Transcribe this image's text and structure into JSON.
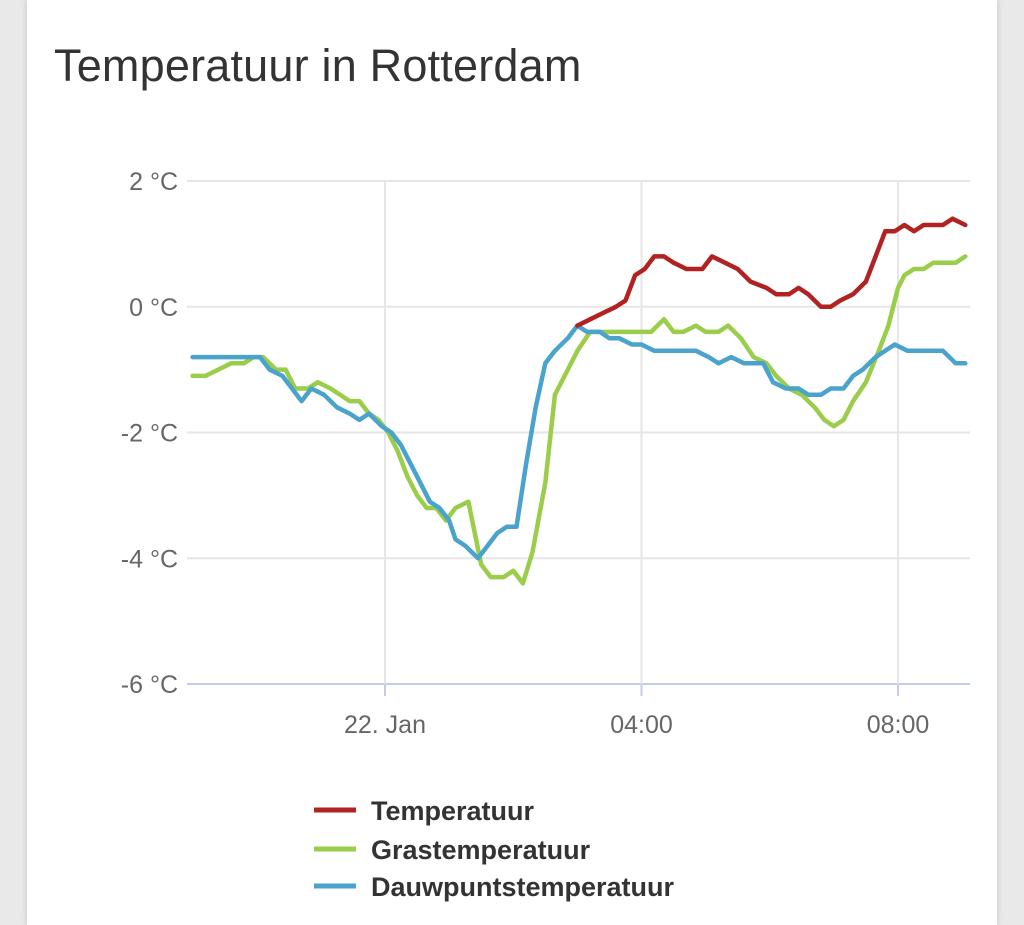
{
  "title": "Temperatuur in Rotterdam",
  "chart_data": {
    "type": "line",
    "title": "Temperatuur in Rotterdam",
    "xlabel": "",
    "ylabel": "",
    "y_ticks": [
      2,
      0,
      -2,
      -4,
      -6
    ],
    "y_unit": "°C",
    "y_tick_labels": [
      "2 °C",
      "0 °C",
      "-2 °C",
      "-4 °C",
      "-6 °C"
    ],
    "ylim": [
      -6,
      2
    ],
    "x_unit": "hours since 00:00 on 22 Jan",
    "xlim": [
      -3,
      9.1
    ],
    "x_ticks": [
      0,
      4,
      8
    ],
    "x_tick_labels": [
      "22. Jan",
      "04:00",
      "08:00"
    ],
    "grid": true,
    "legend_position": "bottom",
    "series": [
      {
        "name": "Temperatuur",
        "color": "#b22222",
        "points": [
          [
            3.0,
            -0.3
          ],
          [
            3.2,
            -0.2
          ],
          [
            3.4,
            -0.1
          ],
          [
            3.6,
            0.0
          ],
          [
            3.75,
            0.1
          ],
          [
            3.9,
            0.5
          ],
          [
            4.05,
            0.6
          ],
          [
            4.2,
            0.8
          ],
          [
            4.35,
            0.8
          ],
          [
            4.5,
            0.7
          ],
          [
            4.7,
            0.6
          ],
          [
            4.95,
            0.6
          ],
          [
            5.1,
            0.8
          ],
          [
            5.3,
            0.7
          ],
          [
            5.5,
            0.6
          ],
          [
            5.7,
            0.4
          ],
          [
            5.95,
            0.3
          ],
          [
            6.1,
            0.2
          ],
          [
            6.3,
            0.2
          ],
          [
            6.45,
            0.3
          ],
          [
            6.6,
            0.2
          ],
          [
            6.8,
            0.0
          ],
          [
            6.95,
            0.0
          ],
          [
            7.1,
            0.1
          ],
          [
            7.3,
            0.2
          ],
          [
            7.5,
            0.4
          ],
          [
            7.65,
            0.8
          ],
          [
            7.8,
            1.2
          ],
          [
            7.95,
            1.2
          ],
          [
            8.1,
            1.3
          ],
          [
            8.25,
            1.2
          ],
          [
            8.4,
            1.3
          ],
          [
            8.55,
            1.3
          ],
          [
            8.7,
            1.3
          ],
          [
            8.85,
            1.4
          ],
          [
            9.05,
            1.3
          ]
        ]
      },
      {
        "name": "Grastemperatuur",
        "color": "#9acd4a",
        "points": [
          [
            -3.0,
            -1.1
          ],
          [
            -2.8,
            -1.1
          ],
          [
            -2.6,
            -1.0
          ],
          [
            -2.4,
            -0.9
          ],
          [
            -2.2,
            -0.9
          ],
          [
            -2.05,
            -0.8
          ],
          [
            -1.9,
            -0.8
          ],
          [
            -1.7,
            -1.0
          ],
          [
            -1.55,
            -1.0
          ],
          [
            -1.4,
            -1.3
          ],
          [
            -1.2,
            -1.3
          ],
          [
            -1.05,
            -1.2
          ],
          [
            -0.85,
            -1.3
          ],
          [
            -0.7,
            -1.4
          ],
          [
            -0.55,
            -1.5
          ],
          [
            -0.4,
            -1.5
          ],
          [
            -0.25,
            -1.7
          ],
          [
            -0.1,
            -1.8
          ],
          [
            0.05,
            -2.0
          ],
          [
            0.2,
            -2.3
          ],
          [
            0.35,
            -2.7
          ],
          [
            0.5,
            -3.0
          ],
          [
            0.65,
            -3.2
          ],
          [
            0.8,
            -3.2
          ],
          [
            0.95,
            -3.4
          ],
          [
            1.1,
            -3.2
          ],
          [
            1.3,
            -3.1
          ],
          [
            1.5,
            -4.1
          ],
          [
            1.65,
            -4.3
          ],
          [
            1.85,
            -4.3
          ],
          [
            2.0,
            -4.2
          ],
          [
            2.15,
            -4.4
          ],
          [
            2.3,
            -3.9
          ],
          [
            2.5,
            -2.8
          ],
          [
            2.65,
            -1.4
          ],
          [
            2.85,
            -1.0
          ],
          [
            3.0,
            -0.7
          ],
          [
            3.2,
            -0.4
          ],
          [
            3.4,
            -0.4
          ],
          [
            3.65,
            -0.4
          ],
          [
            3.9,
            -0.4
          ],
          [
            4.15,
            -0.4
          ],
          [
            4.35,
            -0.2
          ],
          [
            4.5,
            -0.4
          ],
          [
            4.65,
            -0.4
          ],
          [
            4.85,
            -0.3
          ],
          [
            5.0,
            -0.4
          ],
          [
            5.2,
            -0.4
          ],
          [
            5.35,
            -0.3
          ],
          [
            5.55,
            -0.5
          ],
          [
            5.75,
            -0.8
          ],
          [
            5.95,
            -0.9
          ],
          [
            6.1,
            -1.1
          ],
          [
            6.3,
            -1.3
          ],
          [
            6.5,
            -1.4
          ],
          [
            6.7,
            -1.6
          ],
          [
            6.85,
            -1.8
          ],
          [
            7.0,
            -1.9
          ],
          [
            7.15,
            -1.8
          ],
          [
            7.3,
            -1.5
          ],
          [
            7.5,
            -1.2
          ],
          [
            7.7,
            -0.7
          ],
          [
            7.85,
            -0.3
          ],
          [
            8.0,
            0.3
          ],
          [
            8.1,
            0.5
          ],
          [
            8.25,
            0.6
          ],
          [
            8.4,
            0.6
          ],
          [
            8.55,
            0.7
          ],
          [
            8.75,
            0.7
          ],
          [
            8.9,
            0.7
          ],
          [
            9.05,
            0.8
          ]
        ]
      },
      {
        "name": "Dauwpuntstemperatuur",
        "color": "#4aa3cc",
        "points": [
          [
            -3.0,
            -0.8
          ],
          [
            -2.6,
            -0.8
          ],
          [
            -2.2,
            -0.8
          ],
          [
            -1.95,
            -0.8
          ],
          [
            -1.8,
            -1.0
          ],
          [
            -1.6,
            -1.1
          ],
          [
            -1.45,
            -1.3
          ],
          [
            -1.3,
            -1.5
          ],
          [
            -1.15,
            -1.3
          ],
          [
            -0.95,
            -1.4
          ],
          [
            -0.75,
            -1.6
          ],
          [
            -0.55,
            -1.7
          ],
          [
            -0.4,
            -1.8
          ],
          [
            -0.25,
            -1.7
          ],
          [
            -0.05,
            -1.9
          ],
          [
            0.1,
            -2.0
          ],
          [
            0.25,
            -2.2
          ],
          [
            0.4,
            -2.5
          ],
          [
            0.55,
            -2.8
          ],
          [
            0.7,
            -3.1
          ],
          [
            0.85,
            -3.2
          ],
          [
            1.0,
            -3.4
          ],
          [
            1.1,
            -3.7
          ],
          [
            1.25,
            -3.8
          ],
          [
            1.35,
            -3.9
          ],
          [
            1.45,
            -4.0
          ],
          [
            1.6,
            -3.8
          ],
          [
            1.75,
            -3.6
          ],
          [
            1.9,
            -3.5
          ],
          [
            2.05,
            -3.5
          ],
          [
            2.2,
            -2.5
          ],
          [
            2.35,
            -1.6
          ],
          [
            2.5,
            -0.9
          ],
          [
            2.65,
            -0.7
          ],
          [
            2.85,
            -0.5
          ],
          [
            3.0,
            -0.3
          ],
          [
            3.15,
            -0.4
          ],
          [
            3.35,
            -0.4
          ],
          [
            3.5,
            -0.5
          ],
          [
            3.65,
            -0.5
          ],
          [
            3.85,
            -0.6
          ],
          [
            4.0,
            -0.6
          ],
          [
            4.2,
            -0.7
          ],
          [
            4.45,
            -0.7
          ],
          [
            4.65,
            -0.7
          ],
          [
            4.85,
            -0.7
          ],
          [
            5.05,
            -0.8
          ],
          [
            5.2,
            -0.9
          ],
          [
            5.4,
            -0.8
          ],
          [
            5.6,
            -0.9
          ],
          [
            5.9,
            -0.9
          ],
          [
            6.05,
            -1.2
          ],
          [
            6.25,
            -1.3
          ],
          [
            6.45,
            -1.3
          ],
          [
            6.6,
            -1.4
          ],
          [
            6.8,
            -1.4
          ],
          [
            6.95,
            -1.3
          ],
          [
            7.15,
            -1.3
          ],
          [
            7.3,
            -1.1
          ],
          [
            7.45,
            -1.0
          ],
          [
            7.65,
            -0.8
          ],
          [
            7.8,
            -0.7
          ],
          [
            7.95,
            -0.6
          ],
          [
            8.15,
            -0.7
          ],
          [
            8.35,
            -0.7
          ],
          [
            8.55,
            -0.7
          ],
          [
            8.7,
            -0.7
          ],
          [
            8.9,
            -0.9
          ],
          [
            9.05,
            -0.9
          ]
        ]
      }
    ]
  }
}
